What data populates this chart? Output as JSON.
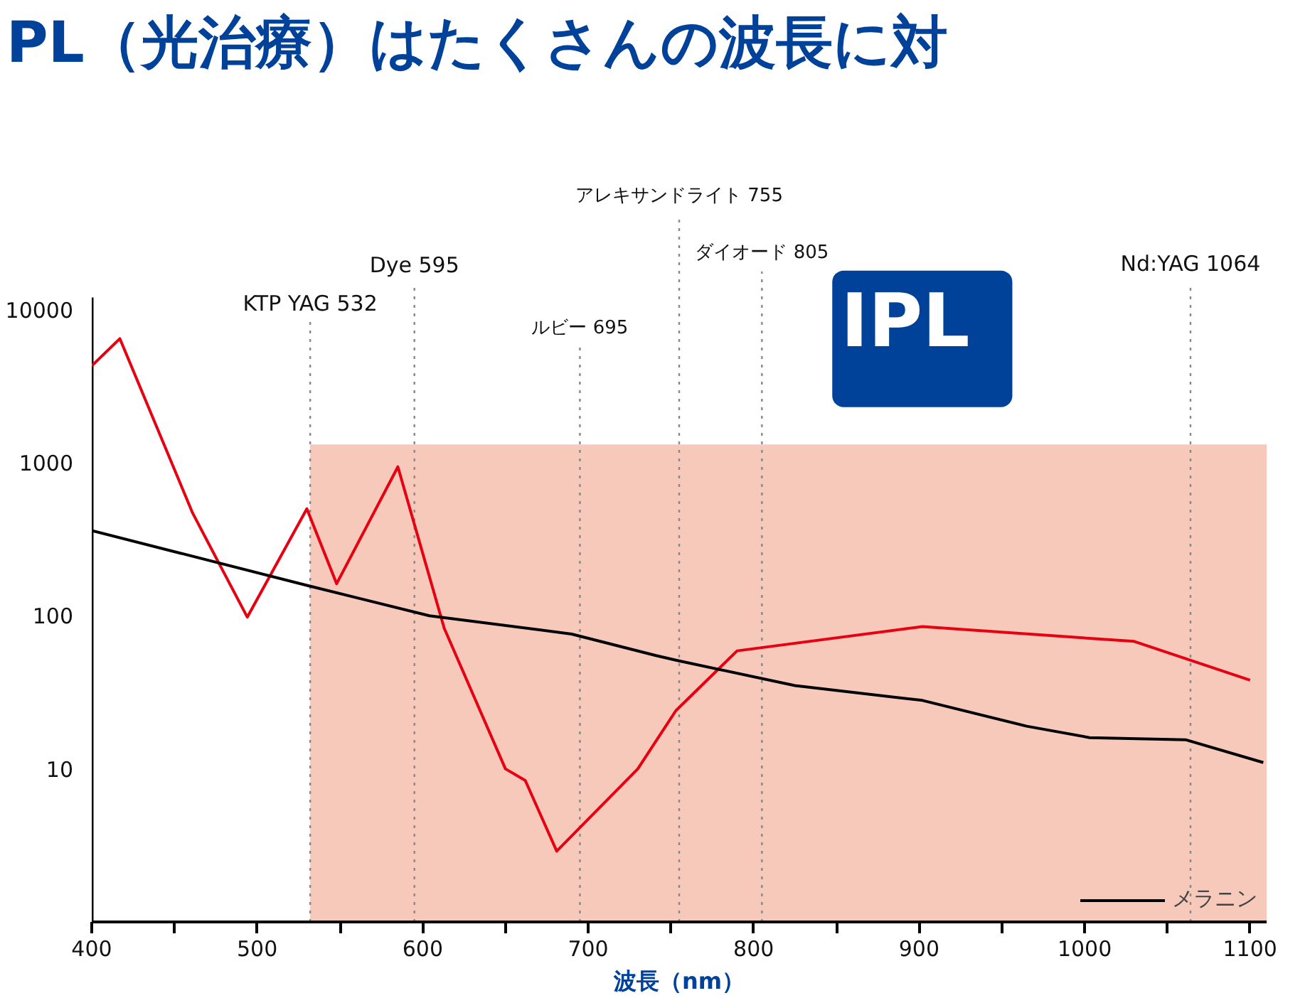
{
  "chart_data": {
    "type": "line",
    "title": "PL（光治療）はたくさんの波長に対",
    "xlabel": "波長（nm）",
    "log": true,
    "grid": false,
    "legend": "bottom right",
    "line_style": "solid",
    "xlim": [
      400,
      1110
    ],
    "ylim": [
      1,
      12000
    ],
    "xticks": [
      400,
      {
        "value": 450,
        "label": null
      },
      500,
      {
        "value": 550,
        "label": null
      },
      600,
      {
        "value": 650,
        "label": null
      },
      700,
      {
        "value": 750,
        "label": null
      },
      800,
      {
        "value": 850,
        "label": null
      },
      900,
      {
        "value": 950,
        "label": null
      },
      1000,
      {
        "value": 1050,
        "label": null
      },
      1100
    ],
    "yticks": [
      10,
      100,
      1000,
      10000
    ],
    "series": [
      {
        "color": "#e60012",
        "x": [
          400,
          417,
          461,
          478,
          494,
          530,
          548,
          585,
          613,
          650,
          662,
          681,
          730,
          753,
          790,
          902,
          1030,
          1100
        ],
        "values": [
          4290,
          6460,
          468,
          209,
          98,
          500,
          162,
          940,
          83,
          10,
          8.4,
          2.9,
          10,
          24,
          59,
          85,
          68,
          38
        ]
      },
      {
        "name": "メラニン",
        "color": "#000000",
        "x": [
          400,
          530,
          604,
          690,
          741,
          754,
          825,
          902,
          965,
          1003,
          1061,
          1108
        ],
        "values": [
          360,
          158,
          100,
          76,
          55,
          51,
          35,
          28,
          19,
          16,
          15.5,
          11
        ]
      }
    ],
    "ref_lines": [
      {
        "axis": "x",
        "value": 532,
        "label": "KTP YAG 532",
        "color": "#888888",
        "line_style": "dotted"
      },
      {
        "axis": "x",
        "value": 595,
        "label": "Dye 595",
        "color": "#888888",
        "line_style": "dotted"
      },
      {
        "axis": "x",
        "value": 695,
        "label": "ルビー 695",
        "color": "#888888",
        "line_style": "dotted"
      },
      {
        "axis": "x",
        "value": 755,
        "label": "アレキサンドライト 755",
        "color": "#888888",
        "line_style": "dotted"
      },
      {
        "axis": "x",
        "value": 805,
        "label": "ダイオード 805",
        "color": "#888888",
        "line_style": "dotted"
      },
      {
        "axis": "x",
        "value": 1064,
        "label": "Nd:YAG 1064",
        "color": "#888888",
        "line_style": "dotted"
      }
    ],
    "bands": [
      {
        "axis": "x",
        "from": 532,
        "to": 1110,
        "label": "IPL",
        "color": "#f5bfae"
      }
    ]
  }
}
